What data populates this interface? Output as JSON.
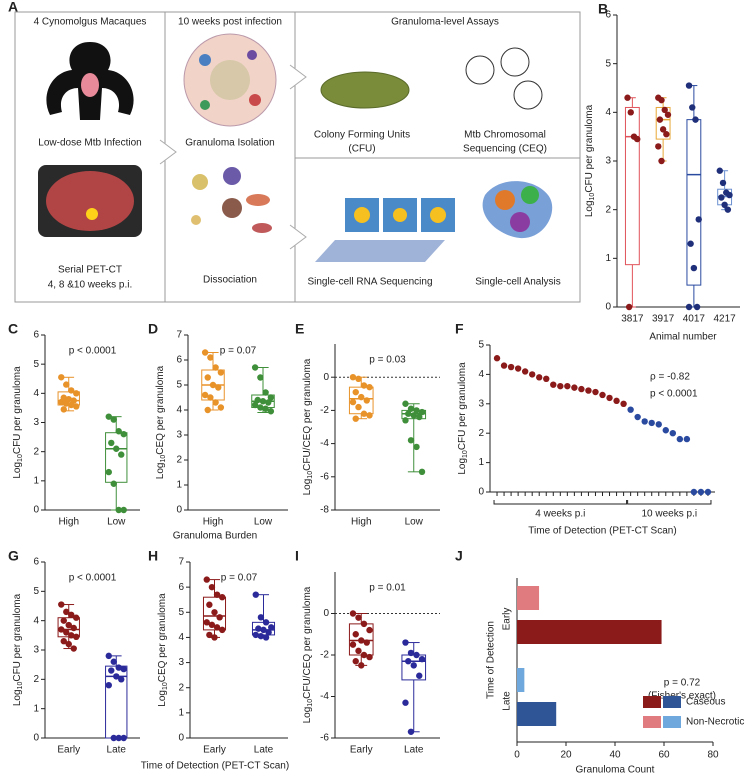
{
  "schematic": {
    "panel": "A",
    "col1_title": "4 Cynomolgus Macaques",
    "infection": "Low-dose Mtb Infection",
    "petct": "Serial PET-CT",
    "petct_times": "4, 8 &10 weeks p.i.",
    "col2_title": "10 weeks post infection",
    "isolation": "Granuloma Isolation",
    "dissociation": "Dissociation",
    "assays_title": "Granuloma-level Assays",
    "cfu_line1": "Colony Forming Units",
    "cfu_line2": "(CFU)",
    "ceq_line1": "Mtb Chromosomal",
    "ceq_line2": "Sequencing (CEQ)",
    "scrna": "Single-cell RNA Sequencing",
    "sc_analysis": "Single-cell Analysis"
  },
  "chart_data": [
    {
      "type": "box",
      "panel": "B",
      "ylabel": {
        "prefix": "Log",
        "sub": "10",
        "suffix": "CFU per granuloma"
      },
      "xlabel": "Animal number",
      "categories": [
        "3817",
        "3917",
        "4017",
        "4217"
      ],
      "box_colors": [
        "#e0525a",
        "#e8a838",
        "#2a4aa0",
        "#6a8fd0"
      ],
      "point_colors": [
        "#8b1a1a",
        "#8b1a1a",
        "#1f2f7a",
        "#1f2f7a"
      ],
      "boxes": [
        {
          "min": 0,
          "q1": 0.87,
          "median": 3.5,
          "q3": 4.1,
          "max": 4.3
        },
        {
          "min": 3.0,
          "q1": 3.45,
          "median": 3.85,
          "q3": 4.1,
          "max": 4.3
        },
        {
          "min": 0,
          "q1": 0.45,
          "median": 2.72,
          "q3": 3.85,
          "max": 4.55
        },
        {
          "min": 2.0,
          "q1": 2.1,
          "median": 2.27,
          "q3": 2.42,
          "max": 2.8
        }
      ],
      "points": [
        [
          4.3,
          4.0,
          3.5,
          3.45,
          0
        ],
        [
          4.3,
          4.25,
          4.05,
          3.95,
          3.85,
          3.65,
          3.55,
          3.3,
          3.0
        ],
        [
          4.55,
          4.1,
          3.85,
          1.8,
          1.3,
          0.8,
          0,
          0
        ],
        [
          2.8,
          2.55,
          2.35,
          2.3,
          2.25,
          2.1,
          2.0
        ]
      ],
      "ylim": [
        0,
        6
      ],
      "yticks": [
        0,
        1,
        2,
        3,
        4,
        5,
        6
      ]
    },
    {
      "type": "box",
      "panel": "C",
      "ylabel": {
        "prefix": "Log",
        "sub": "10",
        "suffix": "CFU per granuloma"
      },
      "annotation": "p < 0.0001",
      "categories": [
        "High",
        "Low"
      ],
      "box_colors": [
        "#e8922a",
        "#3f8f3a"
      ],
      "point_colors": [
        "#e8922a",
        "#3f8f3a"
      ],
      "boxes": [
        {
          "min": 3.4,
          "q1": 3.6,
          "median": 3.75,
          "q3": 4.05,
          "max": 4.55
        },
        {
          "min": 0,
          "q1": 0.95,
          "median": 2.1,
          "q3": 2.65,
          "max": 3.2
        }
      ],
      "points": [
        [
          4.55,
          4.3,
          4.1,
          4.0,
          3.85,
          3.8,
          3.75,
          3.7,
          3.65,
          3.6,
          3.55,
          3.45
        ],
        [
          3.2,
          3.1,
          2.7,
          2.6,
          2.3,
          2.1,
          1.9,
          1.3,
          0.9,
          0,
          0
        ]
      ],
      "ylim": [
        0,
        6
      ],
      "yticks": [
        0,
        1,
        2,
        3,
        4,
        5,
        6
      ]
    },
    {
      "type": "box",
      "panel": "D",
      "ylabel": {
        "prefix": "Log",
        "sub": "10",
        "suffix": "CEQ per granuloma"
      },
      "annotation": "p = 0.07",
      "xlabel": "Granuloma Burden",
      "categories": [
        "High",
        "Low"
      ],
      "box_colors": [
        "#e8922a",
        "#3f8f3a"
      ],
      "point_colors": [
        "#e8922a",
        "#3f8f3a"
      ],
      "boxes": [
        {
          "min": 4.0,
          "q1": 4.4,
          "median": 5.0,
          "q3": 5.6,
          "max": 6.3
        },
        {
          "min": 3.9,
          "q1": 4.1,
          "median": 4.35,
          "q3": 4.6,
          "max": 5.7
        }
      ],
      "points": [
        [
          6.3,
          6.1,
          5.7,
          5.5,
          5.3,
          5.0,
          4.9,
          4.6,
          4.5,
          4.3,
          4.1,
          4.0
        ],
        [
          5.7,
          5.3,
          4.7,
          4.5,
          4.4,
          4.35,
          4.3,
          4.2,
          4.1,
          4.05,
          3.95
        ]
      ],
      "ylim": [
        0,
        7
      ],
      "yticks": [
        0,
        1,
        2,
        3,
        4,
        5,
        6,
        7
      ]
    },
    {
      "type": "box",
      "panel": "E",
      "ylabel": {
        "prefix": "Log",
        "sub": "10",
        "suffix": "CFU/CEQ per granuloma"
      },
      "annotation": "p = 0.03",
      "zero_line": true,
      "categories": [
        "High",
        "Low"
      ],
      "box_colors": [
        "#e8922a",
        "#3f8f3a"
      ],
      "point_colors": [
        "#e8922a",
        "#3f8f3a"
      ],
      "boxes": [
        {
          "min": -2.5,
          "q1": -2.2,
          "median": -1.3,
          "q3": -0.6,
          "max": 0
        },
        {
          "min": -5.7,
          "q1": -2.5,
          "median": -2.2,
          "q3": -2.0,
          "max": -1.6
        }
      ],
      "points": [
        [
          0,
          -0.1,
          -0.5,
          -0.6,
          -0.9,
          -1.2,
          -1.4,
          -1.5,
          -1.8,
          -2.2,
          -2.3,
          -2.5
        ],
        [
          -1.6,
          -1.9,
          -2.0,
          -2.1,
          -2.2,
          -2.3,
          -2.4,
          -2.6,
          -3.8,
          -4.2,
          -5.7
        ]
      ],
      "ylim": [
        -8,
        2
      ],
      "yticks": [
        -8,
        -6,
        -4,
        -2,
        0
      ]
    },
    {
      "type": "scatter",
      "panel": "F",
      "ylabel": {
        "prefix": "Log",
        "sub": "10",
        "suffix": "CFU per granuloma"
      },
      "xlabel": "Time of Detection (PET-CT Scan)",
      "annotations": [
        "ρ = -0.82",
        "p < 0.0001"
      ],
      "series": [
        {
          "name": "4 weeks p.i",
          "color": "#8b1a1a",
          "x": [
            1,
            2,
            3,
            4,
            5,
            6,
            7,
            8,
            9,
            10,
            11,
            12,
            13,
            14,
            15,
            16,
            17,
            18,
            19
          ],
          "values": [
            4.55,
            4.3,
            4.25,
            4.2,
            4.1,
            4.0,
            3.9,
            3.85,
            3.65,
            3.6,
            3.6,
            3.55,
            3.5,
            3.45,
            3.4,
            3.3,
            3.2,
            3.1,
            3.0
          ]
        },
        {
          "name": "10 weeks p.i",
          "color": "#2a4aa0",
          "x": [
            20,
            21,
            22,
            23,
            24,
            25,
            26,
            27,
            28,
            29,
            30,
            31
          ],
          "values": [
            2.8,
            2.55,
            2.4,
            2.35,
            2.3,
            2.1,
            2.0,
            1.8,
            1.8,
            0,
            0,
            0
          ]
        }
      ],
      "xlim": [
        0,
        32
      ],
      "ylim": [
        0,
        5
      ],
      "yticks": [
        0,
        1,
        2,
        3,
        4,
        5
      ]
    },
    {
      "type": "box",
      "panel": "G",
      "ylabel": {
        "prefix": "Log",
        "sub": "10",
        "suffix": "CFU per granuloma"
      },
      "annotation": "p < 0.0001",
      "categories": [
        "Early",
        "Late"
      ],
      "box_colors": [
        "#8b1a1a",
        "#2b2a9a"
      ],
      "point_colors": [
        "#8b1a1a",
        "#2b2a9a"
      ],
      "boxes": [
        {
          "min": 3.05,
          "q1": 3.45,
          "median": 3.7,
          "q3": 4.1,
          "max": 4.55
        },
        {
          "min": 0,
          "q1": 0,
          "median": 2.1,
          "q3": 2.45,
          "max": 2.8
        }
      ],
      "points": [
        [
          4.55,
          4.3,
          4.2,
          4.1,
          4.0,
          3.85,
          3.75,
          3.7,
          3.6,
          3.5,
          3.45,
          3.3,
          3.2,
          3.05
        ],
        [
          2.8,
          2.6,
          2.4,
          2.35,
          2.3,
          2.1,
          2.0,
          1.8,
          0,
          0,
          0
        ]
      ],
      "ylim": [
        0,
        6
      ],
      "yticks": [
        0,
        1,
        2,
        3,
        4,
        5,
        6
      ]
    },
    {
      "type": "box",
      "panel": "H",
      "ylabel": {
        "prefix": "Log",
        "sub": "10",
        "suffix": "CEQ per granuloma"
      },
      "annotation": "p = 0.07",
      "xlabel": "Time of Detection (PET-CT Scan)",
      "categories": [
        "Early",
        "Late"
      ],
      "box_colors": [
        "#8b1a1a",
        "#2b2a9a"
      ],
      "point_colors": [
        "#8b1a1a",
        "#2b2a9a"
      ],
      "boxes": [
        {
          "min": 4.0,
          "q1": 4.3,
          "median": 4.85,
          "q3": 5.6,
          "max": 6.3
        },
        {
          "min": 4.0,
          "q1": 4.1,
          "median": 4.3,
          "q3": 4.6,
          "max": 5.7
        }
      ],
      "points": [
        [
          6.3,
          6.0,
          5.7,
          5.6,
          5.3,
          5.0,
          4.8,
          4.6,
          4.5,
          4.4,
          4.3,
          4.1,
          4.0
        ],
        [
          5.7,
          4.8,
          4.6,
          4.4,
          4.35,
          4.3,
          4.2,
          4.1,
          4.05,
          4.0
        ]
      ],
      "ylim": [
        0,
        7
      ],
      "yticks": [
        0,
        1,
        2,
        3,
        4,
        5,
        6,
        7
      ]
    },
    {
      "type": "box",
      "panel": "I",
      "ylabel": {
        "prefix": "Log",
        "sub": "10",
        "suffix": "CFU/CEQ per granuloma"
      },
      "annotation": "p = 0.01",
      "zero_line": true,
      "categories": [
        "Early",
        "Late"
      ],
      "box_colors": [
        "#8b1a1a",
        "#2b2a9a"
      ],
      "point_colors": [
        "#8b1a1a",
        "#2b2a9a"
      ],
      "boxes": [
        {
          "min": -2.5,
          "q1": -2.0,
          "median": -1.3,
          "q3": -0.5,
          "max": 0
        },
        {
          "min": -5.7,
          "q1": -3.2,
          "median": -2.3,
          "q3": -2.0,
          "max": -1.4
        }
      ],
      "points": [
        [
          0,
          -0.2,
          -0.5,
          -0.8,
          -1.0,
          -1.3,
          -1.4,
          -1.5,
          -1.8,
          -2.0,
          -2.1,
          -2.3,
          -2.5
        ],
        [
          -1.4,
          -1.9,
          -2.0,
          -2.2,
          -2.3,
          -2.5,
          -3.0,
          -4.3,
          -5.7
        ]
      ],
      "ylim": [
        -6,
        2
      ],
      "yticks": [
        -6,
        -4,
        -2,
        0
      ]
    },
    {
      "type": "hbar",
      "panel": "J",
      "ylabel": "Time of Detection",
      "xlabel": "Granuloma Count",
      "annotations": [
        "p = 0.72",
        "(Fisher's exact)"
      ],
      "categories": [
        "Early",
        "Late"
      ],
      "category_colors": [
        "#c0392b",
        "#2b2a9a"
      ],
      "series": [
        {
          "name": "Caseous",
          "colors": [
            "#8b1a1a",
            "#2f5597"
          ],
          "values": [
            59,
            16
          ]
        },
        {
          "name": "Non-Necrotic",
          "colors": [
            "#e07b80",
            "#6fa8dc"
          ],
          "values": [
            9,
            3
          ]
        }
      ],
      "xlim": [
        0,
        80
      ],
      "xticks": [
        0,
        20,
        40,
        60,
        80
      ]
    }
  ]
}
